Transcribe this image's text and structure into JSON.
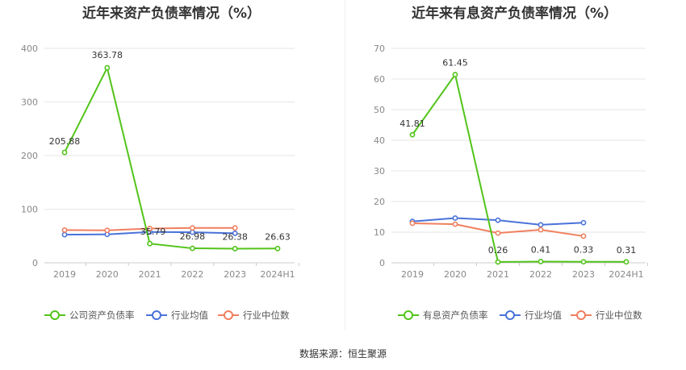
{
  "chart_data": [
    {
      "type": "line",
      "title": "近年来资产负债率情况（%）",
      "categories": [
        "2019",
        "2020",
        "2021",
        "2022",
        "2023",
        "2024H1"
      ],
      "ylim": [
        0,
        400
      ],
      "yticks": [
        0,
        100,
        200,
        300,
        400
      ],
      "grid": true,
      "legend": "bottom",
      "series": [
        {
          "name": "公司资产负债率",
          "color": "#52c41a",
          "values": [
            205.88,
            363.78,
            35.79,
            26.98,
            26.38,
            26.63
          ],
          "labels": [
            "205.88",
            "363.78",
            "35.79",
            "26.98",
            "26.38",
            "26.63"
          ]
        },
        {
          "name": "行业均值",
          "color": "#4a72d9",
          "values": [
            52.5,
            53.0,
            57.5,
            57.0,
            55.0,
            null
          ]
        },
        {
          "name": "行业中位数",
          "color": "#f07f5f",
          "values": [
            61.0,
            60.5,
            64.0,
            65.0,
            65.0,
            null
          ]
        }
      ]
    },
    {
      "type": "line",
      "title": "近年来有息资产负债率情况（%）",
      "categories": [
        "2019",
        "2020",
        "2021",
        "2022",
        "2023",
        "2024H1"
      ],
      "ylim": [
        0,
        70
      ],
      "yticks": [
        0,
        10,
        20,
        30,
        40,
        50,
        60,
        70
      ],
      "grid": true,
      "legend": "bottom",
      "series": [
        {
          "name": "有息资产负债率",
          "color": "#52c41a",
          "values": [
            41.81,
            61.45,
            0.26,
            0.41,
            0.33,
            0.31
          ],
          "labels": [
            "41.81",
            "61.45",
            "0.26",
            "0.41",
            "0.33",
            "0.31"
          ]
        },
        {
          "name": "行业均值",
          "color": "#4a72d9",
          "values": [
            13.5,
            14.6,
            13.9,
            12.4,
            13.1,
            null
          ]
        },
        {
          "name": "行业中位数",
          "color": "#f07f5f",
          "values": [
            12.9,
            12.6,
            9.7,
            10.8,
            8.7,
            null
          ]
        }
      ]
    }
  ],
  "source": "数据来源：恒生聚源"
}
